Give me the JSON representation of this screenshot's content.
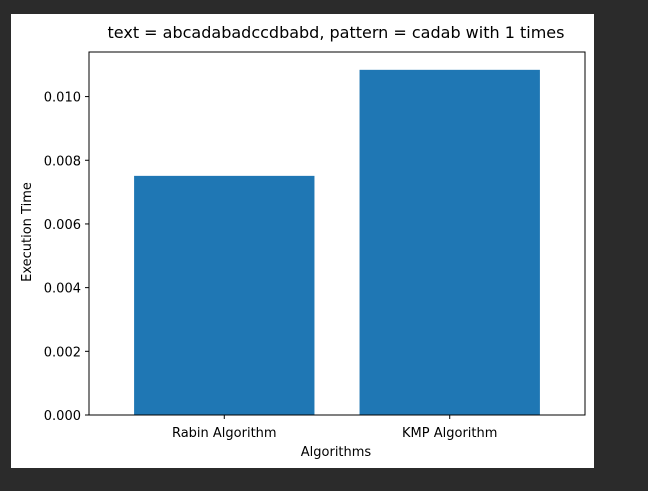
{
  "chart_data": {
    "type": "bar",
    "title": "text = abcadabadccdbabd, pattern = cadab  with 1 times",
    "xlabel": "Algorithms",
    "ylabel": "Execution Time",
    "categories": [
      "Rabin Algorithm",
      "KMP Algorithm"
    ],
    "values": [
      0.00751,
      0.01084
    ],
    "ylim": [
      0,
      0.0114
    ],
    "yticks": [
      "0.000",
      "0.002",
      "0.004",
      "0.006",
      "0.008",
      "0.010"
    ],
    "ytick_values": [
      0,
      0.002,
      0.004,
      0.006,
      0.008,
      0.01
    ],
    "bar_color": "#1f77b4",
    "grid": false,
    "legend": "none"
  }
}
